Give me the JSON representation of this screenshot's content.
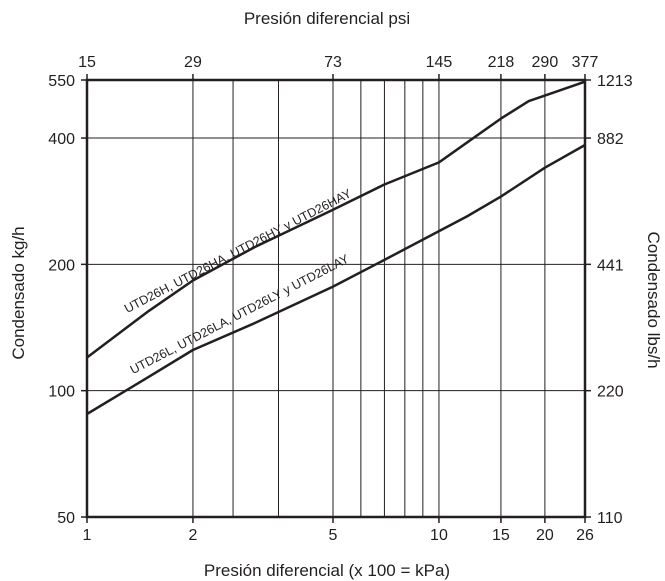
{
  "chart_data": {
    "type": "line",
    "title": "",
    "x_scale": "log",
    "y_scale": "log",
    "xlabel_bottom": "Presión diferencial (x 100 = kPa)",
    "xlabel_top": "Presión diferencial psi",
    "ylabel_left": "Condensado kg/h",
    "ylabel_right": "Condensado lbs/h",
    "xlim": [
      1,
      26
    ],
    "ylim": [
      50,
      550
    ],
    "grid": true,
    "x_ticks_bottom": [
      {
        "value": 1,
        "label": "1"
      },
      {
        "value": 2,
        "label": "2"
      },
      {
        "value": 5,
        "label": "5"
      },
      {
        "value": 10,
        "label": "10"
      },
      {
        "value": 15,
        "label": "15"
      },
      {
        "value": 20,
        "label": "20"
      },
      {
        "value": 26,
        "label": "26"
      }
    ],
    "x_ticks_top": [
      {
        "value": 1,
        "label": "15"
      },
      {
        "value": 2,
        "label": "29"
      },
      {
        "value": 5,
        "label": "73"
      },
      {
        "value": 10,
        "label": "145"
      },
      {
        "value": 15,
        "label": "218"
      },
      {
        "value": 20,
        "label": "290"
      },
      {
        "value": 26,
        "label": "377"
      }
    ],
    "x_gridlines": [
      2,
      2.6,
      3.5,
      5,
      6,
      7,
      8,
      9,
      10,
      15,
      20
    ],
    "y_ticks_left": [
      {
        "value": 50,
        "label": "50"
      },
      {
        "value": 100,
        "label": "100"
      },
      {
        "value": 200,
        "label": "200"
      },
      {
        "value": 400,
        "label": "400"
      },
      {
        "value": 550,
        "label": "550"
      }
    ],
    "y_ticks_right": [
      {
        "value": 50,
        "label": "110"
      },
      {
        "value": 100,
        "label": "220"
      },
      {
        "value": 200,
        "label": "441"
      },
      {
        "value": 400,
        "label": "882"
      },
      {
        "value": 550,
        "label": "1213"
      }
    ],
    "series": [
      {
        "name": "UTD26H, UTD26HA, UTD26HY y UTD26HAY",
        "x": [
          1,
          1.5,
          2,
          3,
          5,
          7,
          10,
          12,
          15,
          18,
          20,
          26
        ],
        "y": [
          120,
          155,
          183,
          220,
          270,
          310,
          350,
          390,
          445,
          490,
          505,
          545
        ]
      },
      {
        "name": "UTD26L, UTD26LA, UTD26LY y UTD26LAY",
        "x": [
          1,
          1.5,
          2,
          3,
          5,
          7,
          10,
          12,
          15,
          20,
          26
        ],
        "y": [
          88,
          108,
          125,
          145,
          177,
          205,
          240,
          260,
          290,
          340,
          385
        ]
      }
    ]
  }
}
